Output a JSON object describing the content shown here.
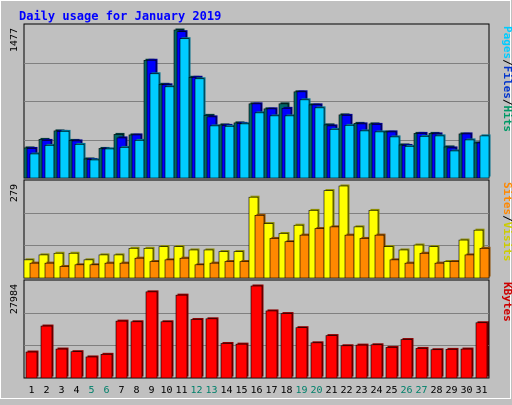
{
  "chart_data": {
    "type": "bar",
    "title": "Daily usage for January 2019",
    "days": [
      "1",
      "2",
      "3",
      "4",
      "5",
      "6",
      "7",
      "8",
      "9",
      "10",
      "11",
      "12",
      "13",
      "14",
      "15",
      "16",
      "17",
      "18",
      "19",
      "20",
      "21",
      "22",
      "23",
      "24",
      "25",
      "26",
      "27",
      "28",
      "29",
      "30",
      "31"
    ],
    "weekend_days": [
      "5",
      "6",
      "12",
      "13",
      "19",
      "20",
      "26",
      "27"
    ],
    "panels": [
      {
        "max_label": "1477",
        "ymax": 1477,
        "axis_labels": [
          {
            "text": "Hits",
            "color": "#009966"
          },
          {
            "text": "/",
            "color": "#000000"
          },
          {
            "text": "Files",
            "color": "#0033cc"
          },
          {
            "text": "/",
            "color": "#000000"
          },
          {
            "text": "Pages",
            "color": "#00ccff"
          }
        ],
        "series": [
          {
            "name": "Hits",
            "color": "#006666",
            "values": [
              300,
              385,
              470,
              375,
              190,
              295,
              435,
              430,
              1175,
              935,
              1477,
              1005,
              625,
              530,
              550,
              740,
              690,
              740,
              860,
              730,
              530,
              630,
              545,
              540,
              460,
              330,
              445,
              445,
              310,
              440,
              350
            ]
          },
          {
            "name": "Files",
            "color": "#0000ff",
            "values": [
              295,
              375,
              465,
              370,
              185,
              290,
              400,
              430,
              1175,
              930,
              1460,
              1005,
              610,
              525,
              545,
              740,
              690,
              695,
              860,
              730,
              520,
              625,
              540,
              535,
              460,
              325,
              445,
              440,
              300,
              440,
              350
            ]
          },
          {
            "name": "Pages",
            "color": "#00ccff",
            "values": [
              240,
              325,
              465,
              335,
              180,
              290,
              305,
              375,
              1040,
              910,
              1390,
              990,
              520,
              515,
              540,
              650,
              620,
              620,
              780,
              700,
              485,
              525,
              470,
              460,
              410,
              315,
              415,
              420,
              270,
              380,
              420
            ]
          }
        ]
      },
      {
        "max_label": "279",
        "ymax": 279,
        "axis_labels": [
          {
            "text": "Visits",
            "color": "#cccc00"
          },
          {
            "text": "/",
            "color": "#000000"
          },
          {
            "text": "Sites",
            "color": "#ff8800"
          }
        ],
        "series": [
          {
            "name": "Visits",
            "color": "#ffff00",
            "values": [
              55,
              70,
              75,
              75,
              55,
              70,
              70,
              90,
              90,
              95,
              95,
              85,
              85,
              80,
              80,
              245,
              165,
              135,
              160,
              205,
              265,
              279,
              155,
              205,
              95,
              85,
              100,
              95,
              50,
              115,
              145
            ]
          },
          {
            "name": "Sites",
            "color": "#ff8800",
            "values": [
              45,
              45,
              35,
              40,
              40,
              45,
              45,
              60,
              50,
              55,
              60,
              40,
              45,
              50,
              50,
              190,
              120,
              110,
              130,
              150,
              155,
              130,
              120,
              130,
              55,
              45,
              75,
              45,
              50,
              70,
              90
            ]
          }
        ]
      },
      {
        "max_label": "27984",
        "ymax": 27984,
        "axis_labels": [
          {
            "text": "KBytes",
            "color": "#cc0000"
          }
        ],
        "series": [
          {
            "name": "KBytes",
            "color": "#ff0000",
            "values": [
              7900,
              15800,
              8800,
              8000,
              6400,
              7200,
              17300,
              17100,
              26200,
              17100,
              25200,
              17800,
              18000,
              10500,
              10300,
              27984,
              20400,
              19600,
              15300,
              10700,
              12900,
              9800,
              10000,
              10100,
              9300,
              11700,
              9000,
              8600,
              8700,
              8800,
              16800
            ]
          }
        ]
      }
    ]
  }
}
